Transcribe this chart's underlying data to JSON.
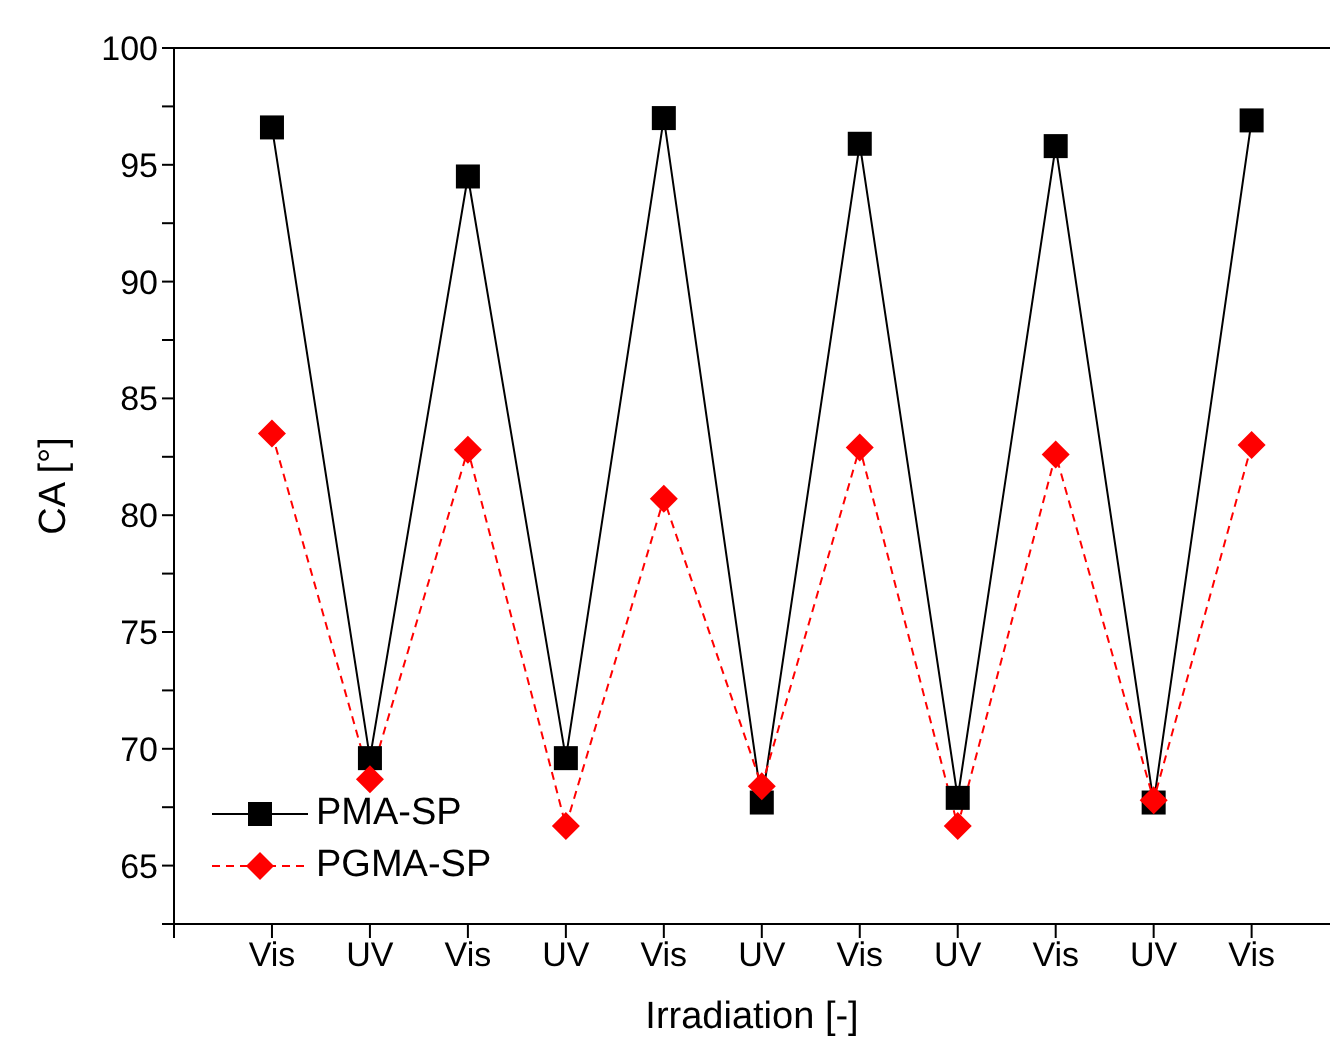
{
  "chart_data": {
    "type": "line",
    "xlabel": "Irradiation [-]",
    "ylabel": "CA [°]",
    "categories": [
      "Vis",
      "UV",
      "Vis",
      "UV",
      "Vis",
      "UV",
      "Vis",
      "UV",
      "Vis",
      "UV",
      "Vis"
    ],
    "series": [
      {
        "name": "PMA-SP",
        "color": "#000000",
        "marker": "square",
        "line_style": "solid",
        "values": [
          96.6,
          69.6,
          94.5,
          69.6,
          97.0,
          67.7,
          95.9,
          67.9,
          95.8,
          67.7,
          96.9
        ]
      },
      {
        "name": "PGMA-SP",
        "color": "#ff0000",
        "marker": "diamond",
        "line_style": "dashed",
        "values": [
          83.5,
          68.7,
          82.8,
          66.7,
          80.7,
          68.4,
          82.9,
          66.7,
          82.6,
          67.8,
          83.0
        ]
      }
    ],
    "ylim": [
      62.5,
      100
    ],
    "yticks": [
      {
        "value": 62.5,
        "label": null
      },
      65,
      {
        "value": 67.5,
        "label": null
      },
      70,
      {
        "value": 72.5,
        "label": null
      },
      75,
      {
        "value": 77.5,
        "label": null
      },
      80,
      {
        "value": 82.5,
        "label": null
      },
      85,
      {
        "value": 87.5,
        "label": null
      },
      90,
      {
        "value": 92.5,
        "label": null
      },
      95,
      {
        "value": 97.5,
        "label": null
      },
      100
    ],
    "grid": false,
    "legend": "bottom left"
  }
}
